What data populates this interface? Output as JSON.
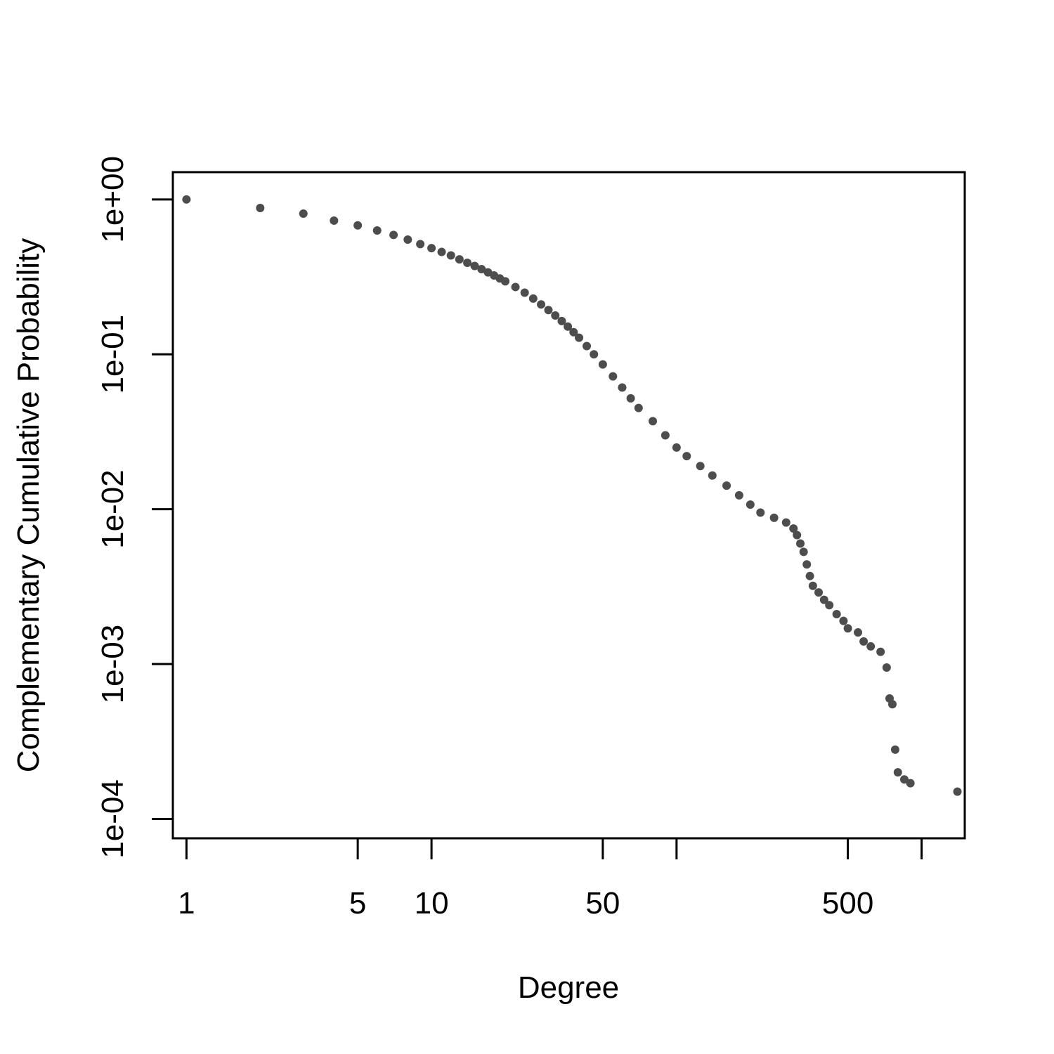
{
  "chart_data": {
    "type": "scatter",
    "title": "",
    "xlabel": "Degree",
    "ylabel": "Complementary Cumulative Probability",
    "x_scale": "log",
    "y_scale": "log",
    "xlim": [
      0.88,
      1500
    ],
    "ylim": [
      7.5e-05,
      1.5
    ],
    "x_ticks": [
      {
        "value": 1,
        "label": "1"
      },
      {
        "value": 5,
        "label": "5"
      },
      {
        "value": 10,
        "label": "10"
      },
      {
        "value": 50,
        "label": "50"
      },
      {
        "value": 100,
        "label": ""
      },
      {
        "value": 500,
        "label": "500"
      },
      {
        "value": 1000,
        "label": ""
      }
    ],
    "y_ticks": [
      {
        "value": 1,
        "label": "1e+00"
      },
      {
        "value": 0.1,
        "label": "1e-01"
      },
      {
        "value": 0.01,
        "label": "1e-02"
      },
      {
        "value": 0.001,
        "label": "1e-03"
      },
      {
        "value": 0.0001,
        "label": "1e-04"
      }
    ],
    "grid": false,
    "point_color": "#4d4d4d",
    "points": [
      [
        1,
        1.0
      ],
      [
        2,
        0.88
      ],
      [
        3,
        0.81
      ],
      [
        4,
        0.73
      ],
      [
        5,
        0.68
      ],
      [
        6,
        0.63
      ],
      [
        7,
        0.59
      ],
      [
        8,
        0.55
      ],
      [
        9,
        0.515
      ],
      [
        10,
        0.485
      ],
      [
        11,
        0.458
      ],
      [
        12,
        0.435
      ],
      [
        13,
        0.41
      ],
      [
        14,
        0.39
      ],
      [
        15,
        0.372
      ],
      [
        16,
        0.355
      ],
      [
        17,
        0.338
      ],
      [
        18,
        0.323
      ],
      [
        19,
        0.309
      ],
      [
        20,
        0.296
      ],
      [
        22,
        0.272
      ],
      [
        24,
        0.25
      ],
      [
        26,
        0.229
      ],
      [
        28,
        0.21
      ],
      [
        30,
        0.193
      ],
      [
        32,
        0.178
      ],
      [
        34,
        0.164
      ],
      [
        36,
        0.151
      ],
      [
        38,
        0.139
      ],
      [
        40,
        0.128
      ],
      [
        43,
        0.113
      ],
      [
        46,
        0.1
      ],
      [
        50,
        0.086
      ],
      [
        55,
        0.072
      ],
      [
        60,
        0.061
      ],
      [
        65,
        0.052
      ],
      [
        70,
        0.045
      ],
      [
        80,
        0.037
      ],
      [
        90,
        0.03
      ],
      [
        100,
        0.025
      ],
      [
        110,
        0.022
      ],
      [
        125,
        0.019
      ],
      [
        140,
        0.0165
      ],
      [
        160,
        0.0142
      ],
      [
        180,
        0.0123
      ],
      [
        200,
        0.0107
      ],
      [
        220,
        0.0095
      ],
      [
        250,
        0.0088
      ],
      [
        280,
        0.0082
      ],
      [
        300,
        0.0075
      ],
      [
        310,
        0.0068
      ],
      [
        320,
        0.006
      ],
      [
        330,
        0.0053
      ],
      [
        340,
        0.0044
      ],
      [
        350,
        0.0037
      ],
      [
        360,
        0.0032
      ],
      [
        380,
        0.0029
      ],
      [
        400,
        0.0026
      ],
      [
        420,
        0.0024
      ],
      [
        450,
        0.0021
      ],
      [
        480,
        0.0019
      ],
      [
        500,
        0.0017
      ],
      [
        550,
        0.0016
      ],
      [
        580,
        0.0014
      ],
      [
        620,
        0.0013
      ],
      [
        680,
        0.0012
      ],
      [
        720,
        0.00095
      ],
      [
        740,
        0.0006
      ],
      [
        760,
        0.00055
      ],
      [
        780,
        0.00028
      ],
      [
        800,
        0.0002
      ],
      [
        850,
        0.00018
      ],
      [
        900,
        0.00017
      ],
      [
        1400,
        0.00015
      ]
    ]
  }
}
